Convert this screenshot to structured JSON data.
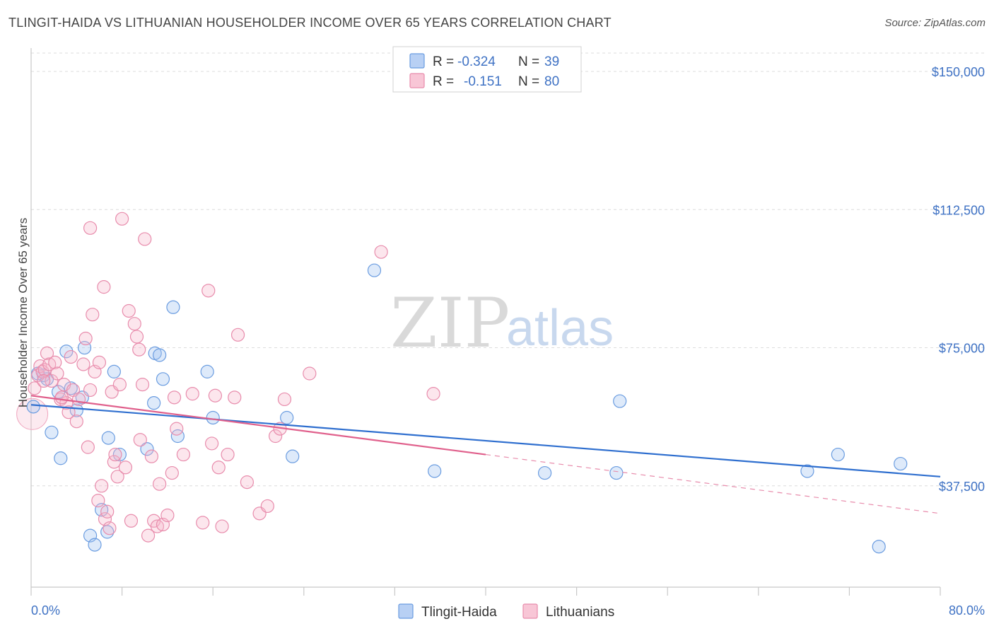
{
  "header": {
    "title": "TLINGIT-HAIDA VS LITHUANIAN HOUSEHOLDER INCOME OVER 65 YEARS CORRELATION CHART",
    "source": "Source: ZipAtlas.com"
  },
  "watermark": {
    "zip": "ZIP",
    "atlas": "atlas"
  },
  "legend": {
    "rows": [
      {
        "r_label": "R =",
        "r_value": "-0.324",
        "n_label": "N =",
        "n_value": "39"
      },
      {
        "r_label": "R =",
        "r_value": "-0.151",
        "n_label": "N =",
        "n_value": "80"
      }
    ]
  },
  "chart_data": {
    "type": "scatter",
    "title": "TLINGIT-HAIDA VS LITHUANIAN HOUSEHOLDER INCOME OVER 65 YEARS CORRELATION CHART",
    "xlabel": "",
    "ylabel": "Householder Income Over 65 years",
    "xlim": [
      0,
      80
    ],
    "ylim": [
      10000,
      155000
    ],
    "x_tick_labels": [
      "0.0%",
      "80.0%"
    ],
    "y_ticks": [
      37500,
      75000,
      112500,
      150000
    ],
    "y_tick_labels": [
      "$37,500",
      "$75,000",
      "$112,500",
      "$150,000"
    ],
    "grid": true,
    "legend_position": "top-center",
    "colors": {
      "tlingit": "#4a86d8",
      "lithuanian": "#e46a94"
    },
    "series": [
      {
        "name": "Tlingit-Haida",
        "r": -0.324,
        "n": 39,
        "trend": {
          "x": [
            0,
            80
          ],
          "y": [
            59500,
            40000
          ]
        },
        "points": [
          [
            0.2,
            59000
          ],
          [
            1.1,
            67500
          ],
          [
            1.4,
            66500
          ],
          [
            1.8,
            52000
          ],
          [
            2.4,
            63000
          ],
          [
            2.6,
            45000
          ],
          [
            3.1,
            74000
          ],
          [
            3.5,
            64000
          ],
          [
            4.0,
            58000
          ],
          [
            4.5,
            61500
          ],
          [
            4.7,
            75000
          ],
          [
            5.2,
            24000
          ],
          [
            5.6,
            21500
          ],
          [
            6.2,
            31000
          ],
          [
            6.7,
            25000
          ],
          [
            6.8,
            50500
          ],
          [
            7.3,
            68500
          ],
          [
            7.8,
            46000
          ],
          [
            10.2,
            47500
          ],
          [
            10.8,
            60000
          ],
          [
            10.9,
            73500
          ],
          [
            11.3,
            73000
          ],
          [
            11.6,
            66500
          ],
          [
            12.5,
            86000
          ],
          [
            12.9,
            51000
          ],
          [
            15.5,
            68500
          ],
          [
            16.0,
            56000
          ],
          [
            22.5,
            56000
          ],
          [
            23.0,
            45500
          ],
          [
            30.2,
            96000
          ],
          [
            35.5,
            41500
          ],
          [
            45.2,
            41000
          ],
          [
            51.5,
            41000
          ],
          [
            51.8,
            60500
          ],
          [
            68.3,
            41500
          ],
          [
            71.0,
            46000
          ],
          [
            74.6,
            21000
          ],
          [
            76.5,
            43500
          ],
          [
            0.6,
            68000
          ]
        ]
      },
      {
        "name": "Lithuanians",
        "r": -0.151,
        "n": 80,
        "trend": {
          "x": [
            0,
            40
          ],
          "y": [
            62000,
            46000
          ]
        },
        "trend_ext": {
          "x": [
            40,
            80
          ],
          "y": [
            46000,
            30000
          ]
        },
        "points": [
          [
            0.1,
            57000
          ],
          [
            0.3,
            64000
          ],
          [
            0.6,
            67500
          ],
          [
            0.8,
            70000
          ],
          [
            1.0,
            68500
          ],
          [
            1.2,
            69000
          ],
          [
            1.4,
            73500
          ],
          [
            1.6,
            70500
          ],
          [
            1.8,
            66000
          ],
          [
            2.1,
            71000
          ],
          [
            2.3,
            68000
          ],
          [
            2.6,
            61000
          ],
          [
            2.9,
            65000
          ],
          [
            3.1,
            60000
          ],
          [
            3.3,
            57500
          ],
          [
            3.5,
            72500
          ],
          [
            3.7,
            63500
          ],
          [
            4.0,
            55000
          ],
          [
            4.2,
            61000
          ],
          [
            4.6,
            70500
          ],
          [
            4.8,
            77500
          ],
          [
            5.0,
            48000
          ],
          [
            5.2,
            63500
          ],
          [
            5.4,
            84000
          ],
          [
            5.6,
            68500
          ],
          [
            5.9,
            33500
          ],
          [
            6.0,
            71000
          ],
          [
            6.2,
            37500
          ],
          [
            6.4,
            91500
          ],
          [
            6.5,
            28500
          ],
          [
            6.7,
            30500
          ],
          [
            6.9,
            26000
          ],
          [
            7.1,
            63000
          ],
          [
            7.3,
            44000
          ],
          [
            7.4,
            46000
          ],
          [
            7.6,
            40000
          ],
          [
            7.8,
            65000
          ],
          [
            8.0,
            110000
          ],
          [
            8.3,
            42500
          ],
          [
            8.6,
            85000
          ],
          [
            8.8,
            28000
          ],
          [
            9.1,
            81500
          ],
          [
            9.3,
            78000
          ],
          [
            9.5,
            74500
          ],
          [
            9.6,
            50000
          ],
          [
            9.8,
            65000
          ],
          [
            10.0,
            104500
          ],
          [
            10.3,
            24000
          ],
          [
            10.6,
            45500
          ],
          [
            10.8,
            28000
          ],
          [
            11.1,
            26500
          ],
          [
            11.3,
            38000
          ],
          [
            11.6,
            27000
          ],
          [
            12.0,
            29500
          ],
          [
            12.4,
            41000
          ],
          [
            12.6,
            61500
          ],
          [
            12.8,
            53000
          ],
          [
            13.4,
            46000
          ],
          [
            14.2,
            62500
          ],
          [
            15.1,
            27500
          ],
          [
            15.6,
            90500
          ],
          [
            15.9,
            49000
          ],
          [
            16.2,
            62000
          ],
          [
            16.5,
            42500
          ],
          [
            16.8,
            26500
          ],
          [
            17.3,
            46000
          ],
          [
            17.9,
            61500
          ],
          [
            18.2,
            78500
          ],
          [
            19.0,
            38500
          ],
          [
            20.1,
            30000
          ],
          [
            20.8,
            32000
          ],
          [
            21.5,
            51000
          ],
          [
            21.9,
            53000
          ],
          [
            22.3,
            61000
          ],
          [
            24.5,
            68000
          ],
          [
            30.8,
            101000
          ],
          [
            35.4,
            62500
          ],
          [
            5.2,
            107500
          ],
          [
            2.7,
            61500
          ],
          [
            1.1,
            66000
          ]
        ]
      }
    ]
  }
}
